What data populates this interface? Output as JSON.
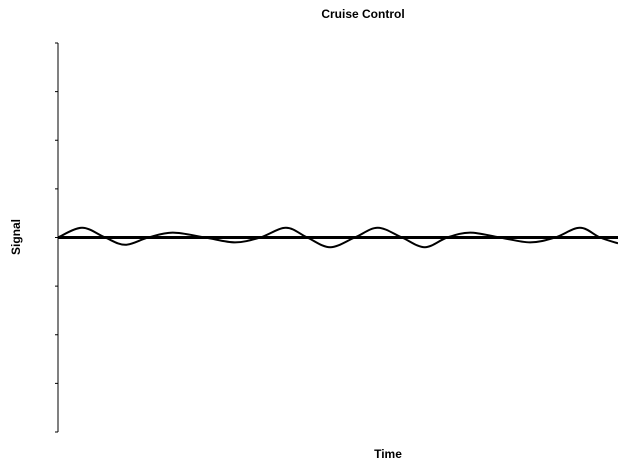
{
  "chart_data": {
    "type": "line",
    "title": "Cruise Control",
    "xlabel": "Time",
    "ylabel": "Signal",
    "xlim": [
      0,
      100
    ],
    "ylim": [
      -4,
      4
    ],
    "yticks": [
      -4,
      -3,
      -2,
      -1,
      0,
      1,
      2,
      3,
      4
    ],
    "series": [
      {
        "color": "#000000",
        "x": [
          0,
          100
        ],
        "values": [
          0,
          0
        ]
      },
      {
        "color": "#000000",
        "x": [
          0,
          4.3,
          8.4,
          12,
          16.1,
          20.5,
          26.3,
          31.6,
          36.1,
          40.7,
          44.5,
          48.6,
          53,
          57.1,
          61.4,
          65.5,
          69.5,
          73.6,
          78.9,
          84.3,
          88.8,
          93.2,
          96.8,
          100
        ],
        "values": [
          0,
          0.2,
          0,
          -0.15,
          0,
          0.1,
          0,
          -0.1,
          0,
          0.2,
          0,
          -0.2,
          0,
          0.2,
          0,
          -0.2,
          0,
          0.1,
          0,
          -0.1,
          0,
          0.2,
          0,
          -0.12
        ]
      }
    ]
  }
}
